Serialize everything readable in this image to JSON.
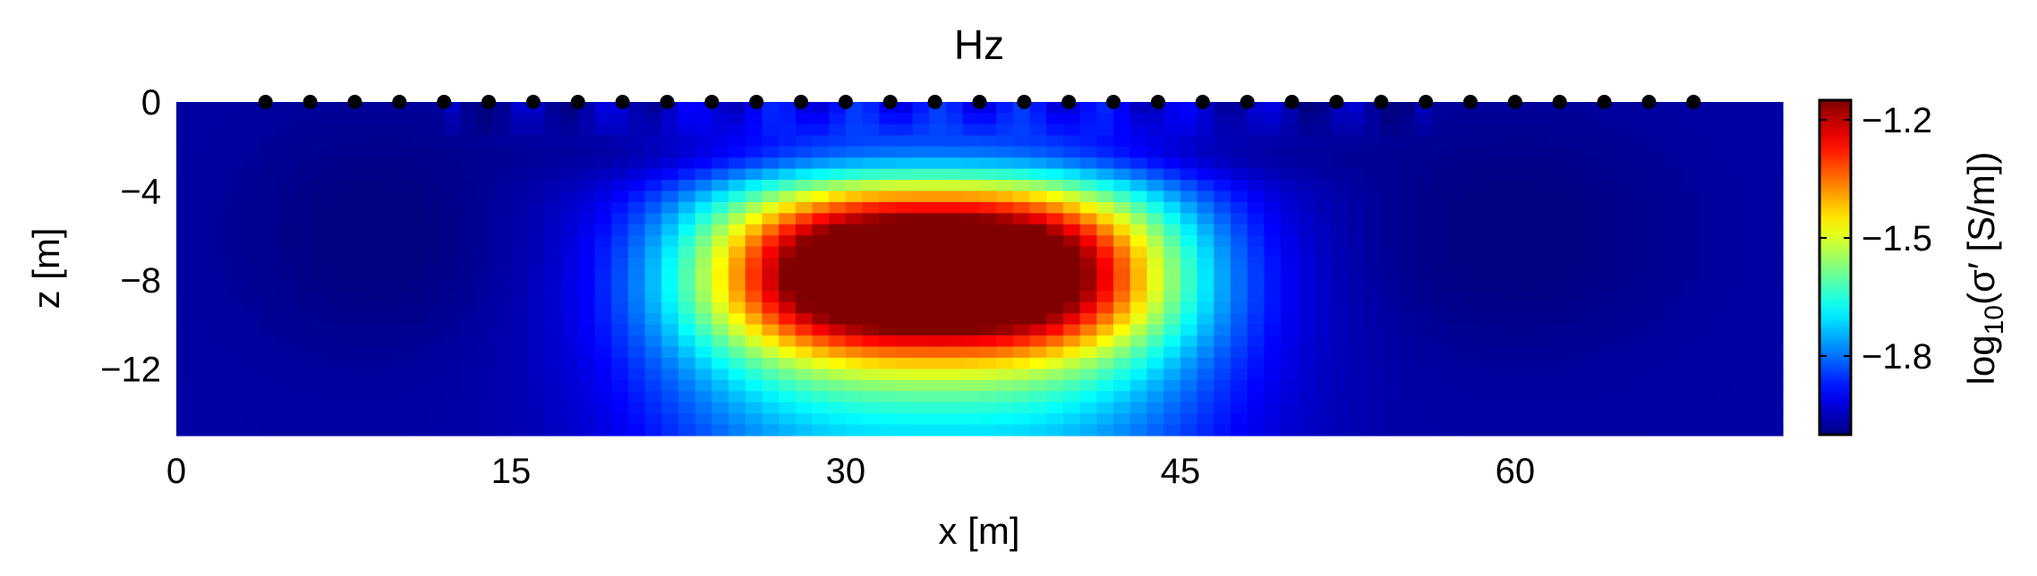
{
  "chart_data": {
    "type": "heatmap",
    "title": "Hz",
    "xlabel": "x [m]",
    "ylabel": "z [m]",
    "xlim": [
      0,
      72
    ],
    "ylim": [
      -15,
      0
    ],
    "x_ticks": [
      0,
      15,
      30,
      45,
      60
    ],
    "x_tick_labels": [
      "0",
      "15",
      "30",
      "45",
      "60"
    ],
    "y_ticks": [
      0,
      -4,
      -8,
      -12
    ],
    "y_tick_labels": [
      "0",
      "−4",
      "−8",
      "−12"
    ],
    "grid": false,
    "colormap": "jet",
    "colorbar": {
      "label_prefix": "log",
      "label_sub": "10",
      "label_suffix": "(σ′ [S/m])",
      "range": [
        -2.0,
        -1.15
      ],
      "ticks": [
        -1.2,
        -1.5,
        -1.8
      ],
      "tick_labels": [
        "−1.2",
        "−1.5",
        "−1.8"
      ]
    },
    "background_value": -1.97,
    "anomalies": [
      {
        "kind": "conductive",
        "center_x": 34,
        "center_z": -7.5,
        "peak_value": -1.15
      },
      {
        "kind": "resistive",
        "center_x": 34,
        "center_z": -2.5,
        "peak_value": -2.0
      }
    ],
    "electrodes": {
      "z": 0,
      "x": [
        4,
        6,
        8,
        10,
        12,
        14,
        16,
        18,
        20,
        22,
        24,
        26,
        28,
        30,
        32,
        34,
        36,
        38,
        40,
        42,
        44,
        46,
        48,
        50,
        52,
        54,
        56,
        58,
        60,
        62,
        64,
        66,
        68
      ]
    }
  }
}
